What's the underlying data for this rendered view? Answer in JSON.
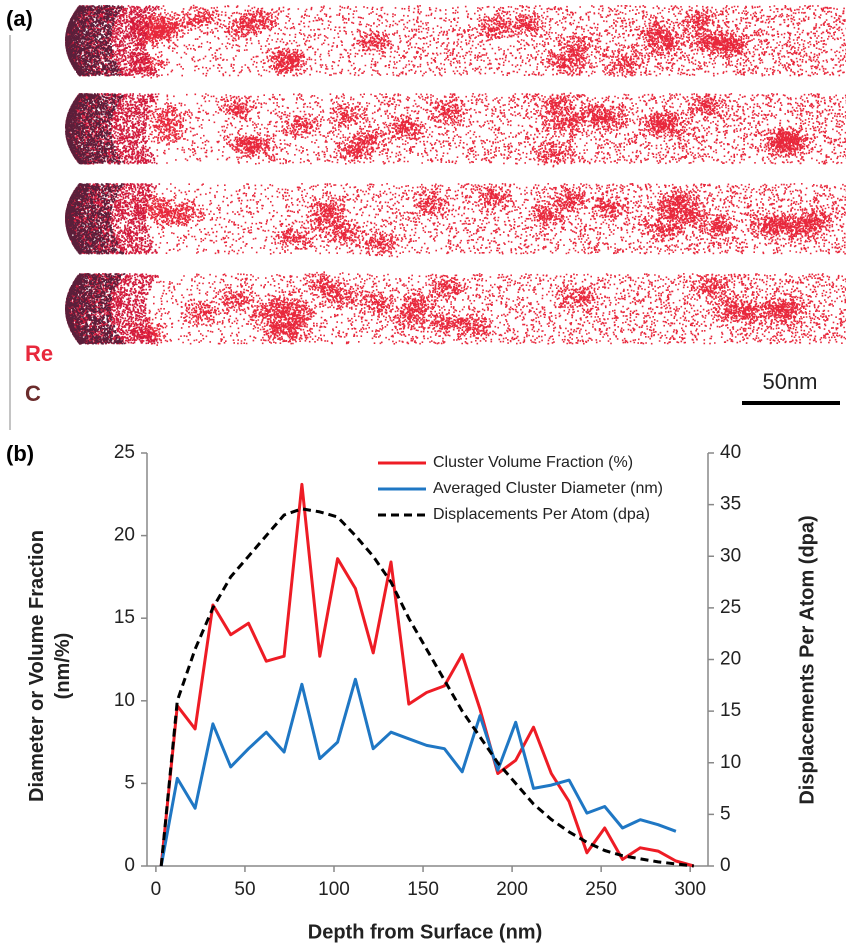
{
  "panel_a": {
    "label": "(a)",
    "species": [
      "Re",
      "C"
    ],
    "scale_bar": "50nm"
  },
  "chart_data": {
    "type": "line",
    "panel_label": "(b)",
    "xlabel": "Depth from Surface (nm)",
    "ylabel": "Diameter or Volume Fraction (nm/%)",
    "y2label": "Displacements Per Atom (dpa)",
    "x": [
      3,
      12,
      22,
      32,
      42,
      52,
      62,
      72,
      82,
      92,
      102,
      112,
      122,
      132,
      142,
      152,
      162,
      172,
      182,
      192,
      202,
      212,
      222,
      232,
      242,
      252,
      262,
      272,
      282,
      292,
      302
    ],
    "series": [
      {
        "name": "Cluster Volume Fraction (%)",
        "color": "#ee1c25",
        "linestyle": "solid",
        "values": [
          0,
          9.7,
          8.3,
          15.8,
          14,
          14.7,
          12.4,
          12.7,
          23.1,
          12.7,
          18.6,
          16.8,
          12.9,
          18.4,
          9.8,
          10.5,
          10.9,
          12.8,
          9.5,
          5.6,
          6.4,
          8.4,
          5.6,
          3.9,
          0.8,
          2.3,
          0.4,
          1.1,
          0.9,
          0.3,
          0
        ]
      },
      {
        "name": "Averaged Cluster Diameter (nm)",
        "color": "#1f77c4",
        "linestyle": "solid",
        "values": [
          0,
          5.3,
          3.5,
          8.6,
          6,
          7.1,
          8.1,
          6.9,
          11,
          6.5,
          7.5,
          11.3,
          7.1,
          8.1,
          7.7,
          7.3,
          7.1,
          5.7,
          9.1,
          5.8,
          8.7,
          4.7,
          4.9,
          5.2,
          3.2,
          3.6,
          2.3,
          2.8,
          2.5,
          2.1,
          null
        ]
      },
      {
        "name": "Displacements Per Atom (dpa)",
        "color": "#000000",
        "linestyle": "dashed",
        "axis": "y2",
        "values": [
          0,
          16,
          21,
          25,
          28,
          30,
          32,
          34,
          34.6,
          34.3,
          33.8,
          32,
          30,
          27.5,
          24,
          21,
          18,
          15,
          12.5,
          10,
          8,
          6,
          4.5,
          3.3,
          2.3,
          1.5,
          1,
          0.7,
          0.4,
          0.2,
          0
        ]
      }
    ],
    "xlim": [
      -5,
      310
    ],
    "xticks": [
      0,
      50,
      100,
      150,
      200,
      250,
      300
    ],
    "ylim": [
      0,
      25
    ],
    "yticks": [
      0,
      5,
      10,
      15,
      20,
      25
    ],
    "y2lim": [
      0,
      40
    ],
    "y2ticks": [
      0,
      5,
      10,
      15,
      20,
      25,
      30,
      35,
      40
    ],
    "legend": "upper right",
    "grid": false
  }
}
